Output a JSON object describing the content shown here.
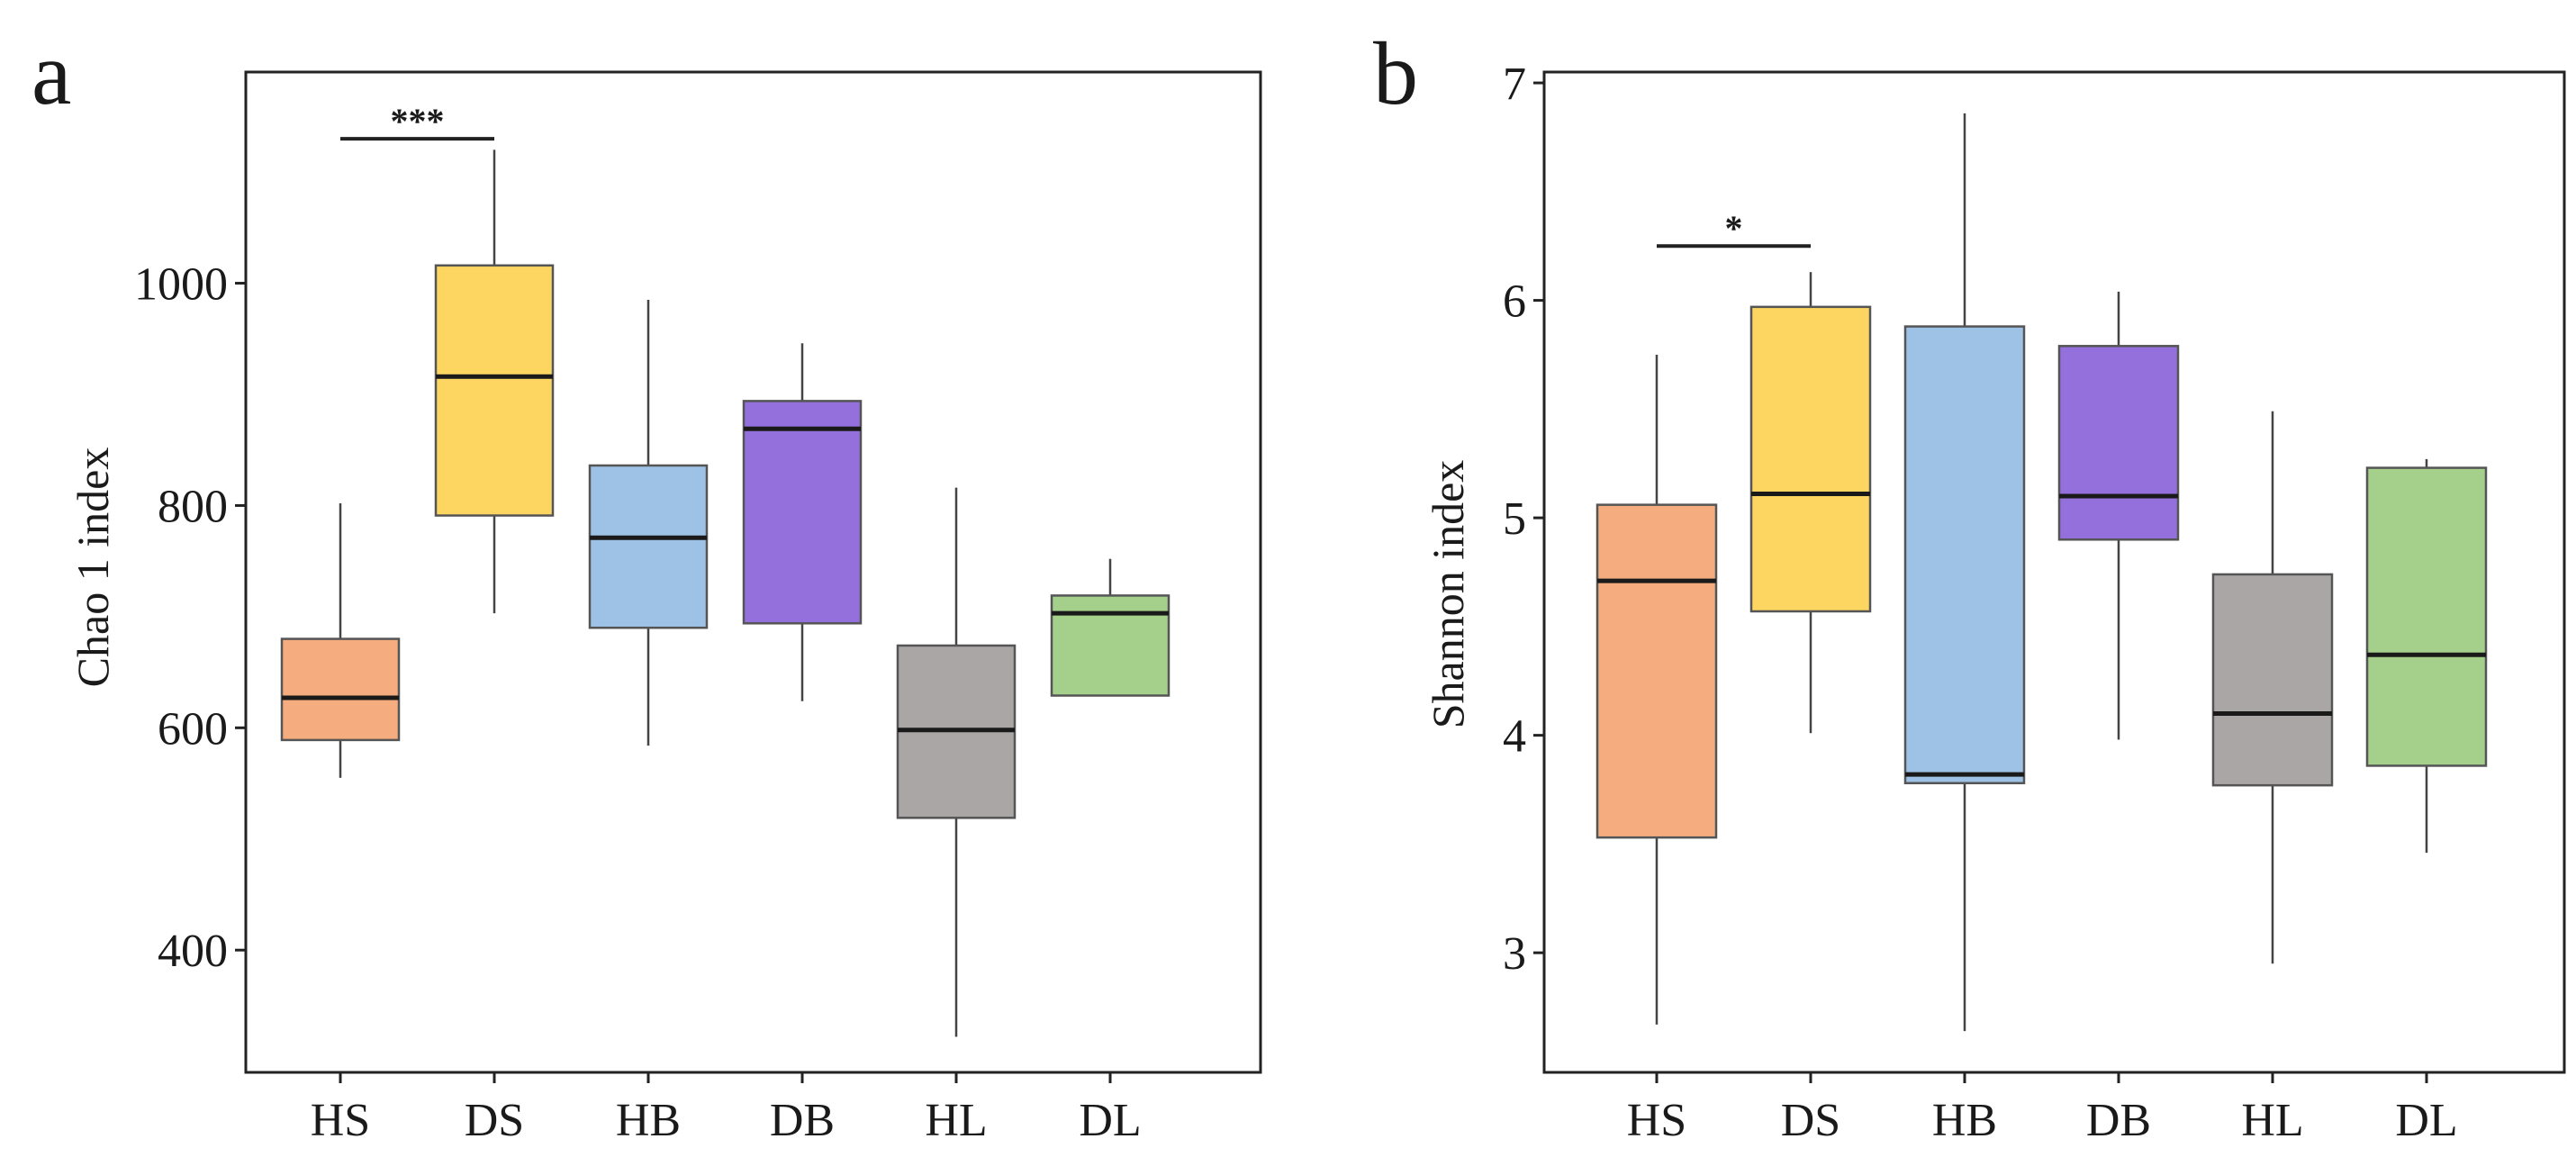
{
  "chart_data": [
    {
      "type": "box",
      "panel_label": "a",
      "title": "",
      "xlabel": "",
      "ylabel": "Chao 1 index",
      "ylim": [
        290,
        1190
      ],
      "yticks": [
        400,
        600,
        800,
        1000
      ],
      "yticklabels": [
        "400",
        "600",
        "800",
        "1000"
      ],
      "categories": [
        "HS",
        "DS",
        "HB",
        "DB",
        "HL",
        "DL"
      ],
      "boxes": [
        {
          "group": "HS",
          "whisker_low": 555,
          "q1": 589,
          "median": 627,
          "q3": 680,
          "whisker_high": 802,
          "color": "#f5ac7f"
        },
        {
          "group": "DS",
          "whisker_low": 703,
          "q1": 791,
          "median": 916,
          "q3": 1016,
          "whisker_high": 1120,
          "color": "#fdd662"
        },
        {
          "group": "HB",
          "whisker_low": 584,
          "q1": 690,
          "median": 771,
          "q3": 836,
          "whisker_high": 985,
          "color": "#9ec2e6"
        },
        {
          "group": "DB",
          "whisker_low": 624,
          "q1": 694,
          "median": 869,
          "q3": 894,
          "whisker_high": 946,
          "color": "#9370db"
        },
        {
          "group": "HL",
          "whisker_low": 322,
          "q1": 519,
          "median": 598,
          "q3": 674,
          "whisker_high": 816,
          "color": "#aaa6a6"
        },
        {
          "group": "DL",
          "whisker_low": 629,
          "q1": 629,
          "median": 703,
          "q3": 719,
          "whisker_high": 752,
          "color": "#a5d08b"
        }
      ],
      "significance": [
        {
          "from": "HS",
          "to": "DS",
          "y": 1130,
          "label": "***"
        }
      ]
    },
    {
      "type": "box",
      "panel_label": "b",
      "title": "",
      "xlabel": "",
      "ylabel": "Shannon index",
      "ylim": [
        2.45,
        7.05
      ],
      "yticks": [
        3,
        4,
        5,
        6,
        7
      ],
      "yticklabels": [
        "3",
        "4",
        "5",
        "6",
        "7"
      ],
      "categories": [
        "HS",
        "DS",
        "HB",
        "DB",
        "HL",
        "DL"
      ],
      "boxes": [
        {
          "group": "HS",
          "whisker_low": 2.67,
          "q1": 3.53,
          "median": 4.71,
          "q3": 5.06,
          "whisker_high": 5.75,
          "color": "#f5ac7f"
        },
        {
          "group": "DS",
          "whisker_low": 4.01,
          "q1": 4.57,
          "median": 5.11,
          "q3": 5.97,
          "whisker_high": 6.13,
          "color": "#fdd662"
        },
        {
          "group": "HB",
          "whisker_low": 2.64,
          "q1": 3.78,
          "median": 3.82,
          "q3": 5.88,
          "whisker_high": 6.86,
          "color": "#9ec2e6"
        },
        {
          "group": "DB",
          "whisker_low": 3.98,
          "q1": 4.9,
          "median": 5.1,
          "q3": 5.79,
          "whisker_high": 6.04,
          "color": "#9370db"
        },
        {
          "group": "HL",
          "whisker_low": 2.95,
          "q1": 3.77,
          "median": 4.1,
          "q3": 4.74,
          "whisker_high": 5.49,
          "color": "#aaa6a6"
        },
        {
          "group": "DL",
          "whisker_low": 3.46,
          "q1": 3.86,
          "median": 4.37,
          "q3": 5.23,
          "whisker_high": 5.27,
          "color": "#a5d08b"
        }
      ],
      "significance": [
        {
          "from": "HS",
          "to": "DS",
          "y": 6.25,
          "label": "*"
        }
      ]
    }
  ]
}
